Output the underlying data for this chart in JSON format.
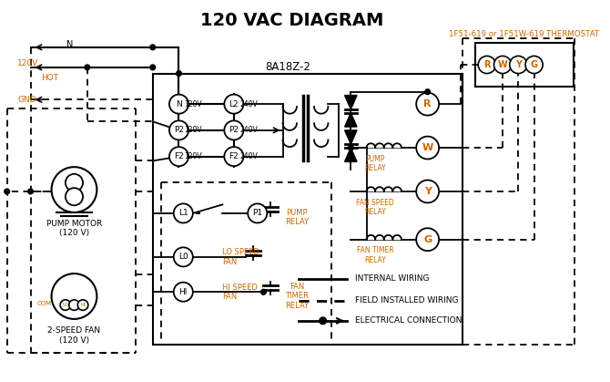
{
  "title": "120 VAC DIAGRAM",
  "title_fontsize": 14,
  "title_fontweight": "bold",
  "bg_color": "#ffffff",
  "line_color": "#000000",
  "orange_color": "#cc6600",
  "thermostat_label": "1F51-619 or 1F51W-619 THERMOSTAT",
  "controller_label": "8A18Z-2",
  "term_labels_RWGG": [
    "R",
    "W",
    "Y",
    "G"
  ],
  "pump_motor_label": "PUMP MOTOR\n(120 V)",
  "fan_label": "2-SPEED FAN\n(120 V)",
  "voltage_120": "120V",
  "voltage_N": "N",
  "voltage_hot": "HOT",
  "voltage_gnd": "GND",
  "legend_internal": "INTERNAL WIRING",
  "legend_field": "FIELD INSTALLED WIRING",
  "legend_elec": "ELECTRICAL CONNECTION"
}
